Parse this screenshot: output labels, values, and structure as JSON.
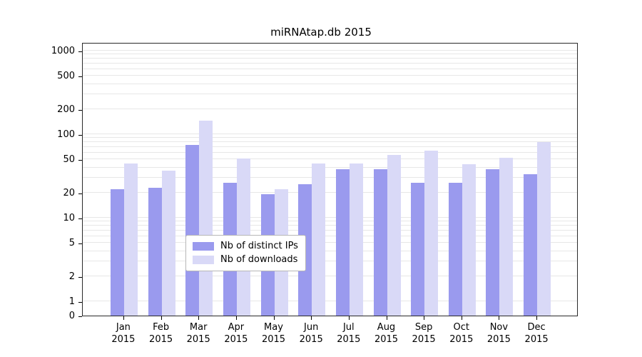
{
  "chart_data": {
    "type": "bar",
    "title": "miRNAtap.db 2015",
    "scale": "symlog",
    "grid": true,
    "legend_position": "bottom-center",
    "categories": [
      "Jan",
      "Feb",
      "Mar",
      "Apr",
      "May",
      "Jun",
      "Jul",
      "Aug",
      "Sep",
      "Oct",
      "Nov",
      "Dec"
    ],
    "year_label": "2015",
    "yticks": [
      0,
      1,
      2,
      5,
      10,
      20,
      50,
      100,
      200,
      500,
      1000
    ],
    "ylim": [
      0,
      1000
    ],
    "series": [
      {
        "name": "Nb of distinct IPs",
        "color": "#9a9aee",
        "values": [
          22,
          23,
          75,
          26,
          19,
          25,
          38,
          38,
          26,
          26,
          38,
          33
        ]
      },
      {
        "name": "Nb of downloads",
        "color": "#d9d9f7",
        "values": [
          45,
          37,
          145,
          51,
          22,
          45,
          45,
          57,
          64,
          44,
          52,
          80
        ]
      }
    ]
  }
}
